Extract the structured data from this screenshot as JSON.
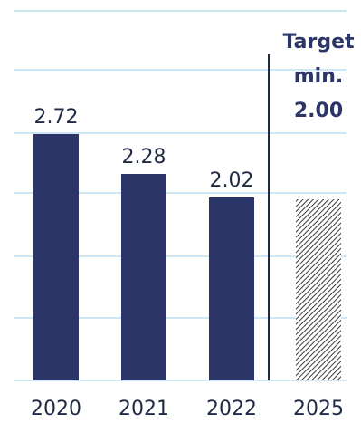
{
  "chart_data": {
    "type": "bar",
    "categories": [
      "2020",
      "2021",
      "2022",
      "2025"
    ],
    "values": [
      2.72,
      2.28,
      2.02,
      2.0
    ],
    "value_labels": [
      "2.72",
      "2.28",
      "2.02",
      "2.00"
    ],
    "ylim": [
      0,
      3.0
    ],
    "grid": true,
    "colors": {
      "bar": "#2b3567",
      "target_hatch": "#3a3a3a",
      "grid": "#cfe6f5",
      "divider": "#1f2a44"
    },
    "target": {
      "category": "2025",
      "label_line1": "Target",
      "label_line2": "min.",
      "value_label": "2.00",
      "style": "hatched"
    }
  }
}
